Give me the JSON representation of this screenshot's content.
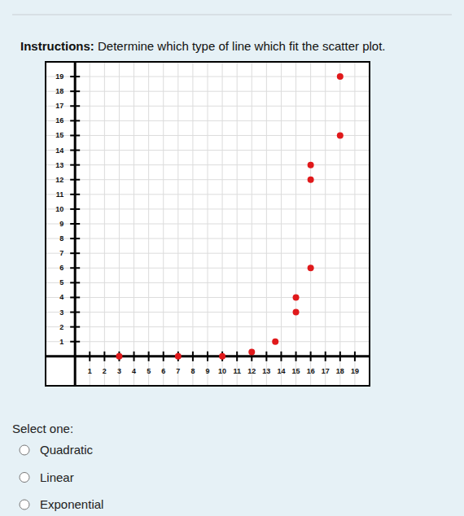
{
  "page": {
    "instructions_label": "Instructions:",
    "instructions": "Determine which type of line which fit the scatter plot.",
    "prompt": "Select one:",
    "options": [
      "Quadratic",
      "Linear",
      "Exponential"
    ]
  },
  "chart_data": {
    "type": "scatter",
    "color": "#e0191b",
    "marker": "circle",
    "grid": true,
    "x": [
      3,
      7,
      10,
      12,
      13.6,
      15,
      15,
      16,
      16,
      16,
      18,
      18
    ],
    "values": [
      0,
      0,
      0,
      0.3,
      1,
      3,
      4,
      6,
      12,
      13,
      15,
      19
    ],
    "xlim": [
      -2,
      20
    ],
    "ylim": [
      -2,
      20
    ],
    "xticks": [
      1,
      2,
      3,
      4,
      5,
      6,
      7,
      8,
      9,
      10,
      11,
      12,
      13,
      14,
      15,
      16,
      17,
      18,
      19
    ],
    "yticks": [
      1,
      2,
      3,
      4,
      5,
      6,
      7,
      8,
      9,
      10,
      11,
      12,
      13,
      14,
      15,
      16,
      17,
      18,
      19
    ]
  }
}
